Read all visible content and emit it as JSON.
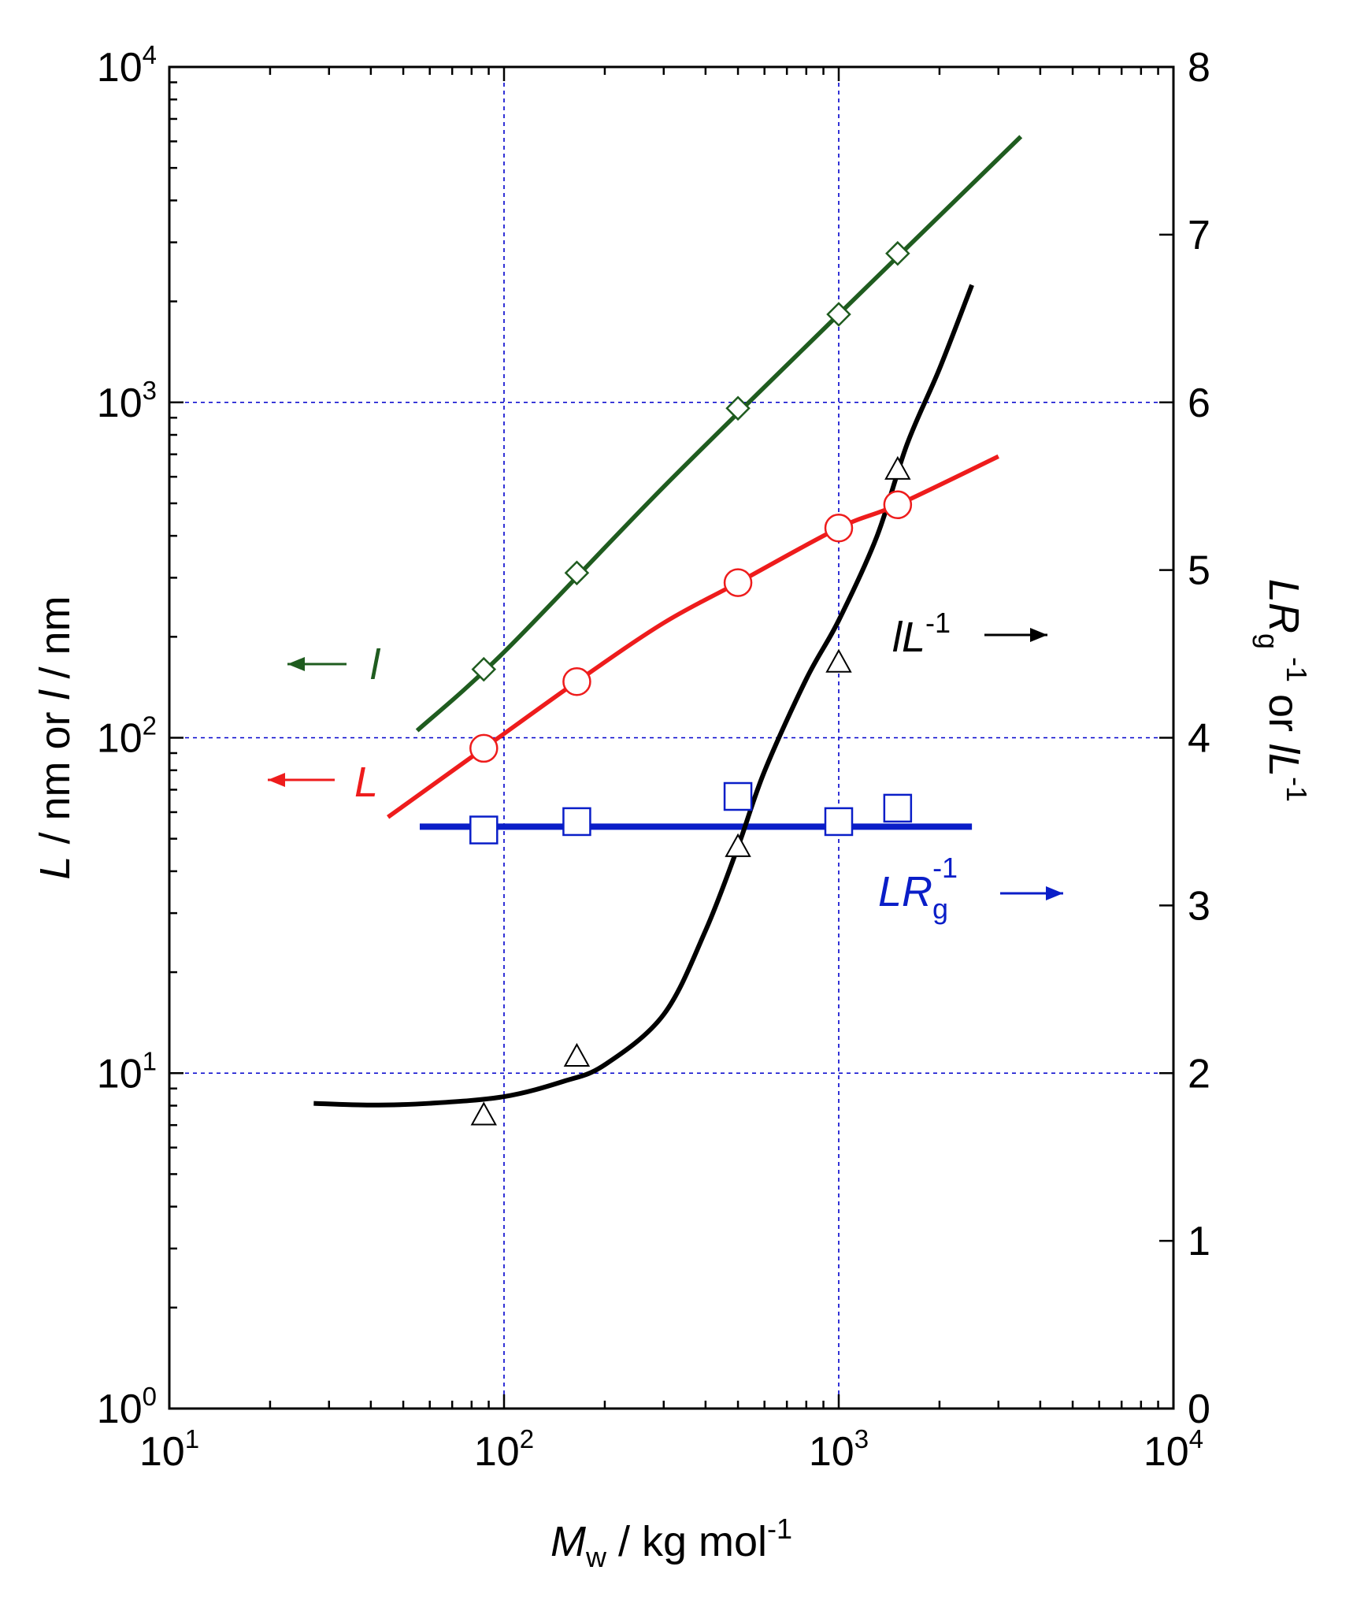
{
  "chart_data": {
    "type": "scatter",
    "x_axis": {
      "scale": "log",
      "lim": [
        10,
        10000
      ],
      "ticks": [
        {
          "base": "10",
          "exp": "1"
        },
        {
          "base": "10",
          "exp": "2"
        },
        {
          "base": "10",
          "exp": "3"
        },
        {
          "base": "10",
          "exp": "4"
        }
      ],
      "label": {
        "symbol": "M",
        "sub": "w",
        "text": " / kg mol",
        "sup": "-1"
      },
      "gridlines": [
        100,
        1000
      ]
    },
    "y_left": {
      "scale": "log",
      "lim": [
        1,
        10000
      ],
      "ticks": [
        {
          "base": "10",
          "exp": "0"
        },
        {
          "base": "10",
          "exp": "1"
        },
        {
          "base": "10",
          "exp": "2"
        },
        {
          "base": "10",
          "exp": "3"
        },
        {
          "base": "10",
          "exp": "4"
        }
      ],
      "label": {
        "v1": "L",
        "t1": " / nm or ",
        "v2": "l",
        "t2": " / nm"
      },
      "gridlines": [
        10,
        100,
        1000
      ]
    },
    "y_right": {
      "scale": "linear",
      "lim": [
        0,
        8
      ],
      "ticks": [
        "0",
        "1",
        "2",
        "3",
        "4",
        "5",
        "6",
        "7",
        "8"
      ],
      "label": {
        "a": "LR",
        "a_sub": "g",
        "a_sup": "-1",
        "mid": " or ",
        "b": "lL",
        "b_sup": "-1"
      }
    },
    "series": [
      {
        "name": "l",
        "axis": "left",
        "color": "#1f5c1f",
        "marker": "diamond",
        "points": [
          [
            87,
            160
          ],
          [
            165,
            310
          ],
          [
            500,
            960
          ],
          [
            1000,
            1830
          ],
          [
            1500,
            2780
          ]
        ],
        "curve": [
          [
            55,
            105
          ],
          [
            100,
            180
          ],
          [
            300,
            560
          ],
          [
            1000,
            1830
          ],
          [
            3500,
            6200
          ]
        ],
        "annotation": {
          "arrow": "left",
          "text": "l",
          "italic": true
        }
      },
      {
        "name": "L",
        "axis": "left",
        "color": "#ee1c1c",
        "marker": "circle",
        "points": [
          [
            87,
            93
          ],
          [
            165,
            147
          ],
          [
            500,
            290
          ],
          [
            1000,
            422
          ],
          [
            1500,
            495
          ]
        ],
        "curve": [
          [
            45,
            58
          ],
          [
            87,
            93
          ],
          [
            165,
            147
          ],
          [
            300,
            220
          ],
          [
            500,
            290
          ],
          [
            1000,
            422
          ],
          [
            1500,
            495
          ],
          [
            3000,
            690
          ]
        ],
        "annotation": {
          "arrow": "left",
          "text": "L",
          "italic": true
        }
      },
      {
        "name": "LR_g^-1",
        "axis": "right",
        "color": "#0a1ec8",
        "marker": "square",
        "points": [
          [
            87,
            3.45
          ],
          [
            165,
            3.5
          ],
          [
            500,
            3.65
          ],
          [
            1000,
            3.5
          ],
          [
            1500,
            3.58
          ]
        ],
        "curve": [
          [
            56,
            3.47
          ],
          [
            2500,
            3.47
          ]
        ],
        "annotation": {
          "arrow": "right",
          "text": "LR",
          "sub": "g",
          "sup": "-1"
        }
      },
      {
        "name": "lL^-1",
        "axis": "right",
        "color": "#000000",
        "marker": "triangle",
        "points": [
          [
            87,
            1.75
          ],
          [
            165,
            2.1
          ],
          [
            500,
            3.35
          ],
          [
            1000,
            4.45
          ],
          [
            1500,
            5.6
          ]
        ],
        "curve": [
          [
            27,
            1.82
          ],
          [
            40,
            1.81
          ],
          [
            60,
            1.82
          ],
          [
            100,
            1.86
          ],
          [
            150,
            1.95
          ],
          [
            200,
            2.05
          ],
          [
            300,
            2.35
          ],
          [
            400,
            2.85
          ],
          [
            500,
            3.35
          ],
          [
            600,
            3.8
          ],
          [
            800,
            4.35
          ],
          [
            1000,
            4.7
          ],
          [
            1300,
            5.2
          ],
          [
            1600,
            5.75
          ],
          [
            2000,
            6.2
          ],
          [
            2500,
            6.7
          ]
        ],
        "annotation": {
          "arrow": "right",
          "text": "lL",
          "sup": "-1"
        }
      }
    ]
  }
}
